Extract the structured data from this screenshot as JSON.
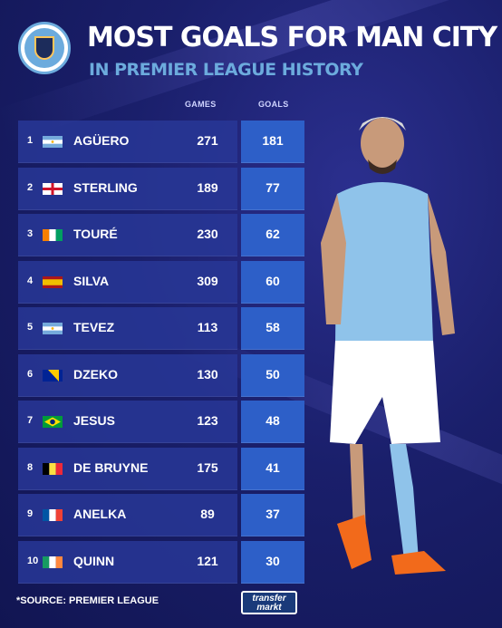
{
  "header": {
    "title": "MOST GOALS FOR MAN CITY",
    "subtitle": "IN PREMIER LEAGUE HISTORY"
  },
  "columns": {
    "games": "GAMES",
    "goals": "GOALS"
  },
  "rows": [
    {
      "rank": "1",
      "name": "AGÜERO",
      "games": "271",
      "goals": "181",
      "flag": "argentina"
    },
    {
      "rank": "2",
      "name": "STERLING",
      "games": "189",
      "goals": "77",
      "flag": "england"
    },
    {
      "rank": "3",
      "name": "TOURÉ",
      "games": "230",
      "goals": "62",
      "flag": "ivory-coast"
    },
    {
      "rank": "4",
      "name": "SILVA",
      "games": "309",
      "goals": "60",
      "flag": "spain"
    },
    {
      "rank": "5",
      "name": "TEVEZ",
      "games": "113",
      "goals": "58",
      "flag": "argentina"
    },
    {
      "rank": "6",
      "name": "DZEKO",
      "games": "130",
      "goals": "50",
      "flag": "bosnia"
    },
    {
      "rank": "7",
      "name": "JESUS",
      "games": "123",
      "goals": "48",
      "flag": "brazil"
    },
    {
      "rank": "8",
      "name": "DE BRUYNE",
      "games": "175",
      "goals": "41",
      "flag": "belgium"
    },
    {
      "rank": "9",
      "name": "ANELKA",
      "games": "89",
      "goals": "37",
      "flag": "france"
    },
    {
      "rank": "10",
      "name": "QUINN",
      "games": "121",
      "goals": "30",
      "flag": "ireland"
    }
  ],
  "footer": {
    "source": "*SOURCE: PREMIER LEAGUE",
    "logo_line1": "transfer",
    "logo_line2": "markt"
  },
  "colors": {
    "background": "#1a1f6b",
    "accent": "#6cabdd",
    "goals_cell": "#2d5fc8"
  }
}
